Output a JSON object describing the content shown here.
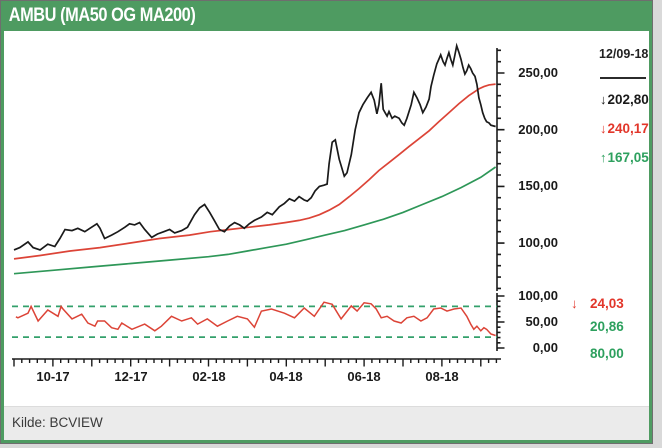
{
  "title_bar": {
    "bg": "#4e9b61",
    "text_color": "#ffffff"
  },
  "footer": {
    "source": "Kilde: BCVIEW",
    "bg": "#ebebeb"
  },
  "icons": {
    "down_arrow": "↓",
    "up_arrow": "↑"
  },
  "colors": {
    "frame_green": "#4e9b61",
    "price_black": "#1a1a1a",
    "ma50_red": "#dc4437",
    "ma200_green": "#2e9758",
    "band_green": "#33a06b",
    "red_text": "#e2362a",
    "green_text": "#2da05e",
    "axis": "#1a1a1a"
  },
  "chart_data": [
    {
      "type": "line",
      "panel": "price",
      "title": "AMBU (MA50 OG MA200)",
      "date_label": "12/09-18",
      "x_unit": "months since Sep-2017",
      "xlim": [
        0,
        12.4
      ],
      "x_ticks": [
        "10-17",
        "12-17",
        "02-18",
        "04-18",
        "06-18",
        "08-18"
      ],
      "x_tick_positions": [
        1,
        3,
        5,
        7,
        9,
        11
      ],
      "y_ticks": [
        "250,00",
        "200,00",
        "150,00",
        "100,00"
      ],
      "y_tick_values": [
        250,
        200,
        150,
        100
      ],
      "ylim": [
        58,
        275
      ],
      "grid": false,
      "legend_position": "right",
      "series": [
        {
          "name": "close",
          "color": "#1a1a1a",
          "last_value": 202.8,
          "last_label": "202,80",
          "trend_arrow": "down",
          "points": [
            [
              0,
              94
            ],
            [
              0.15,
              96
            ],
            [
              0.36,
              101
            ],
            [
              0.49,
              96
            ],
            [
              0.67,
              94
            ],
            [
              0.87,
              99
            ],
            [
              1.05,
              97
            ],
            [
              1.18,
              104
            ],
            [
              1.31,
              112
            ],
            [
              1.49,
              111
            ],
            [
              1.64,
              113
            ],
            [
              1.82,
              110
            ],
            [
              1.95,
              113
            ],
            [
              2.13,
              117
            ],
            [
              2.21,
              113
            ],
            [
              2.33,
              104
            ],
            [
              2.51,
              107
            ],
            [
              2.67,
              110
            ],
            [
              2.85,
              114
            ],
            [
              2.97,
              117
            ],
            [
              3.1,
              116
            ],
            [
              3.23,
              118
            ],
            [
              3.36,
              112
            ],
            [
              3.54,
              105
            ],
            [
              3.69,
              108
            ],
            [
              3.85,
              110
            ],
            [
              4.0,
              112
            ],
            [
              4.13,
              109
            ],
            [
              4.31,
              111
            ],
            [
              4.46,
              114
            ],
            [
              4.64,
              125
            ],
            [
              4.77,
              131
            ],
            [
              4.9,
              134
            ],
            [
              5.03,
              127
            ],
            [
              5.15,
              120
            ],
            [
              5.28,
              112
            ],
            [
              5.41,
              110
            ],
            [
              5.54,
              115
            ],
            [
              5.67,
              118
            ],
            [
              5.8,
              116
            ],
            [
              5.92,
              113
            ],
            [
              6.05,
              117
            ],
            [
              6.18,
              120
            ],
            [
              6.36,
              123
            ],
            [
              6.51,
              127
            ],
            [
              6.64,
              125
            ],
            [
              6.82,
              132
            ],
            [
              6.95,
              135
            ],
            [
              7.08,
              139
            ],
            [
              7.21,
              137
            ],
            [
              7.33,
              141
            ],
            [
              7.46,
              138
            ],
            [
              7.54,
              137
            ],
            [
              7.64,
              140
            ],
            [
              7.74,
              146
            ],
            [
              7.85,
              150
            ],
            [
              7.97,
              151
            ],
            [
              8.05,
              152
            ],
            [
              8.1,
              170
            ],
            [
              8.18,
              189
            ],
            [
              8.26,
              191
            ],
            [
              8.36,
              174
            ],
            [
              8.49,
              159
            ],
            [
              8.56,
              162
            ],
            [
              8.67,
              178
            ],
            [
              8.77,
              200
            ],
            [
              8.87,
              215
            ],
            [
              8.97,
              222
            ],
            [
              9.08,
              228
            ],
            [
              9.18,
              233
            ],
            [
              9.26,
              226
            ],
            [
              9.33,
              214
            ],
            [
              9.38,
              222
            ],
            [
              9.44,
              241
            ],
            [
              9.49,
              218
            ],
            [
              9.54,
              215
            ],
            [
              9.59,
              212
            ],
            [
              9.64,
              216
            ],
            [
              9.72,
              210
            ],
            [
              9.79,
              212
            ],
            [
              9.9,
              210
            ],
            [
              9.97,
              206
            ],
            [
              10.03,
              204
            ],
            [
              10.1,
              210
            ],
            [
              10.21,
              222
            ],
            [
              10.28,
              233
            ],
            [
              10.36,
              228
            ],
            [
              10.44,
              222
            ],
            [
              10.51,
              215
            ],
            [
              10.59,
              220
            ],
            [
              10.67,
              227
            ],
            [
              10.72,
              238
            ],
            [
              10.79,
              248
            ],
            [
              10.87,
              258
            ],
            [
              10.92,
              262
            ],
            [
              10.97,
              266
            ],
            [
              11.03,
              260
            ],
            [
              11.08,
              257
            ],
            [
              11.13,
              263
            ],
            [
              11.18,
              268
            ],
            [
              11.23,
              262
            ],
            [
              11.28,
              257
            ],
            [
              11.33,
              265
            ],
            [
              11.38,
              274
            ],
            [
              11.44,
              268
            ],
            [
              11.49,
              262
            ],
            [
              11.54,
              255
            ],
            [
              11.59,
              249
            ],
            [
              11.64,
              252
            ],
            [
              11.69,
              257
            ],
            [
              11.74,
              254
            ],
            [
              11.79,
              250
            ],
            [
              11.85,
              247
            ],
            [
              11.9,
              240
            ],
            [
              11.95,
              228
            ],
            [
              12.0,
              222
            ],
            [
              12.05,
              215
            ],
            [
              12.1,
              210
            ],
            [
              12.15,
              207
            ],
            [
              12.21,
              206
            ],
            [
              12.26,
              204
            ],
            [
              12.38,
              202.8
            ]
          ]
        },
        {
          "name": "ma50",
          "color": "#dc4437",
          "last_value": 240.17,
          "last_label": "240,17",
          "trend_arrow": "down",
          "points": [
            [
              0,
              86
            ],
            [
              0.67,
              89
            ],
            [
              1.44,
              93
            ],
            [
              2.21,
              96
            ],
            [
              2.97,
              100
            ],
            [
              3.74,
              104
            ],
            [
              4.51,
              107
            ],
            [
              5.05,
              110
            ],
            [
              5.54,
              112
            ],
            [
              6.05,
              114
            ],
            [
              6.56,
              116
            ],
            [
              6.97,
              118
            ],
            [
              7.33,
              120
            ],
            [
              7.59,
              122
            ],
            [
              7.85,
              125
            ],
            [
              8.1,
              129
            ],
            [
              8.36,
              134
            ],
            [
              8.62,
              141
            ],
            [
              8.87,
              148
            ],
            [
              9.13,
              156
            ],
            [
              9.38,
              164
            ],
            [
              9.64,
              171
            ],
            [
              9.9,
              178
            ],
            [
              10.15,
              185
            ],
            [
              10.41,
              192
            ],
            [
              10.67,
              199
            ],
            [
              10.92,
              207
            ],
            [
              11.18,
              215
            ],
            [
              11.44,
              223
            ],
            [
              11.69,
              230
            ],
            [
              11.82,
              233
            ],
            [
              11.95,
              236
            ],
            [
              12.08,
              238
            ],
            [
              12.21,
              239.5
            ],
            [
              12.38,
              240.17
            ]
          ]
        },
        {
          "name": "ma200",
          "color": "#2e9758",
          "last_value": 167.05,
          "last_label": "167,05",
          "trend_arrow": "up",
          "points": [
            [
              0,
              73
            ],
            [
              1,
              76
            ],
            [
              2,
              79
            ],
            [
              3,
              82
            ],
            [
              4,
              85
            ],
            [
              5,
              88
            ],
            [
              5.5,
              90
            ],
            [
              6,
              93
            ],
            [
              6.5,
              96
            ],
            [
              7,
              99
            ],
            [
              7.5,
              103
            ],
            [
              8,
              107
            ],
            [
              8.5,
              111
            ],
            [
              9,
              116
            ],
            [
              9.5,
              121
            ],
            [
              10,
              127
            ],
            [
              10.5,
              134
            ],
            [
              11,
              141
            ],
            [
              11.5,
              149
            ],
            [
              12,
              158
            ],
            [
              12.38,
              167.05
            ]
          ]
        }
      ]
    },
    {
      "type": "line",
      "panel": "indicator",
      "y_ticks": [
        "100,00",
        "50,00",
        "0,00"
      ],
      "y_tick_values": [
        100,
        50,
        0
      ],
      "ylim": [
        0,
        100
      ],
      "grid": false,
      "bands": {
        "style": "dashed",
        "color": "#33a06b",
        "upper": {
          "value": 80.0,
          "label": "80,00"
        },
        "lower": {
          "value": 20.86,
          "label": "20,86"
        }
      },
      "series": [
        {
          "name": "indicator",
          "color": "#dc4437",
          "last_value": 24.03,
          "last_label": "24,03",
          "trend_arrow": "down",
          "points": [
            [
              0.05,
              60
            ],
            [
              0.1,
              58
            ],
            [
              0.36,
              67
            ],
            [
              0.44,
              80
            ],
            [
              0.62,
              52
            ],
            [
              0.87,
              73
            ],
            [
              1.13,
              61
            ],
            [
              1.21,
              80
            ],
            [
              1.26,
              75
            ],
            [
              1.49,
              56
            ],
            [
              1.74,
              65
            ],
            [
              1.9,
              48
            ],
            [
              2.08,
              42
            ],
            [
              2.15,
              52
            ],
            [
              2.33,
              52
            ],
            [
              2.51,
              39
            ],
            [
              2.67,
              36
            ],
            [
              2.77,
              48
            ],
            [
              3.03,
              36
            ],
            [
              3.36,
              46
            ],
            [
              3.62,
              33
            ],
            [
              3.79,
              42
            ],
            [
              4.05,
              61
            ],
            [
              4.31,
              52
            ],
            [
              4.56,
              58
            ],
            [
              4.72,
              46
            ],
            [
              4.97,
              56
            ],
            [
              5.23,
              42
            ],
            [
              5.49,
              52
            ],
            [
              5.74,
              61
            ],
            [
              6.0,
              56
            ],
            [
              6.18,
              40
            ],
            [
              6.36,
              71
            ],
            [
              6.62,
              75
            ],
            [
              6.95,
              67
            ],
            [
              7.21,
              58
            ],
            [
              7.46,
              77
            ],
            [
              7.72,
              61
            ],
            [
              7.97,
              88
            ],
            [
              8.18,
              84
            ],
            [
              8.41,
              56
            ],
            [
              8.67,
              81
            ],
            [
              8.82,
              71
            ],
            [
              9.0,
              87
            ],
            [
              9.18,
              85
            ],
            [
              9.31,
              75
            ],
            [
              9.44,
              58
            ],
            [
              9.59,
              61
            ],
            [
              9.77,
              52
            ],
            [
              9.95,
              48
            ],
            [
              10.1,
              58
            ],
            [
              10.28,
              61
            ],
            [
              10.46,
              52
            ],
            [
              10.62,
              58
            ],
            [
              10.79,
              75
            ],
            [
              10.97,
              77
            ],
            [
              11.13,
              71
            ],
            [
              11.31,
              75
            ],
            [
              11.49,
              77
            ],
            [
              11.64,
              61
            ],
            [
              11.74,
              46
            ],
            [
              11.82,
              36
            ],
            [
              11.9,
              42
            ],
            [
              12.0,
              33
            ],
            [
              12.08,
              39
            ],
            [
              12.15,
              36
            ],
            [
              12.26,
              27
            ],
            [
              12.38,
              24.03
            ]
          ]
        }
      ]
    }
  ]
}
